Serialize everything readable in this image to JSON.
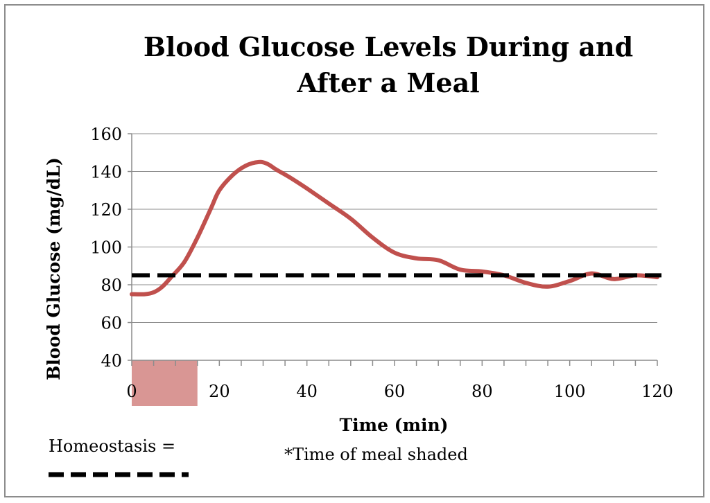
{
  "chart_data": {
    "type": "line",
    "title": "Blood Glucose Levels During and After a Meal",
    "xlabel": "Time (min)",
    "ylabel": "Blood Glucose (mg/dL)",
    "xlim": [
      0,
      120
    ],
    "ylim": [
      40,
      160
    ],
    "x_ticks": [
      0,
      20,
      40,
      60,
      80,
      100,
      120
    ],
    "y_ticks": [
      40,
      60,
      80,
      100,
      120,
      140,
      160
    ],
    "grid": true,
    "series": [
      {
        "color": "#c0504d",
        "x": [
          0,
          3,
          5,
          7,
          9,
          12,
          15,
          18,
          20,
          23,
          26,
          29,
          31,
          33,
          36,
          40,
          45,
          50,
          55,
          60,
          65,
          70,
          75,
          80,
          85,
          90,
          95,
          100,
          105,
          110,
          115,
          120
        ],
        "values": [
          75,
          75,
          76,
          79,
          84,
          92,
          105,
          120,
          130,
          138,
          143,
          145,
          144,
          141,
          137,
          131,
          123,
          115,
          105,
          97,
          94,
          93,
          88,
          87,
          85,
          81,
          79,
          82,
          86,
          83,
          85,
          84
        ]
      }
    ],
    "reference_line": {
      "y": 85,
      "style": "dashed",
      "color": "#000000"
    },
    "shaded_region": {
      "x_start": 0,
      "x_end": 15,
      "color": "#d99694"
    },
    "annotations": {
      "legend_label": "Homeostasis =",
      "shade_note": "*Time of meal shaded"
    }
  }
}
